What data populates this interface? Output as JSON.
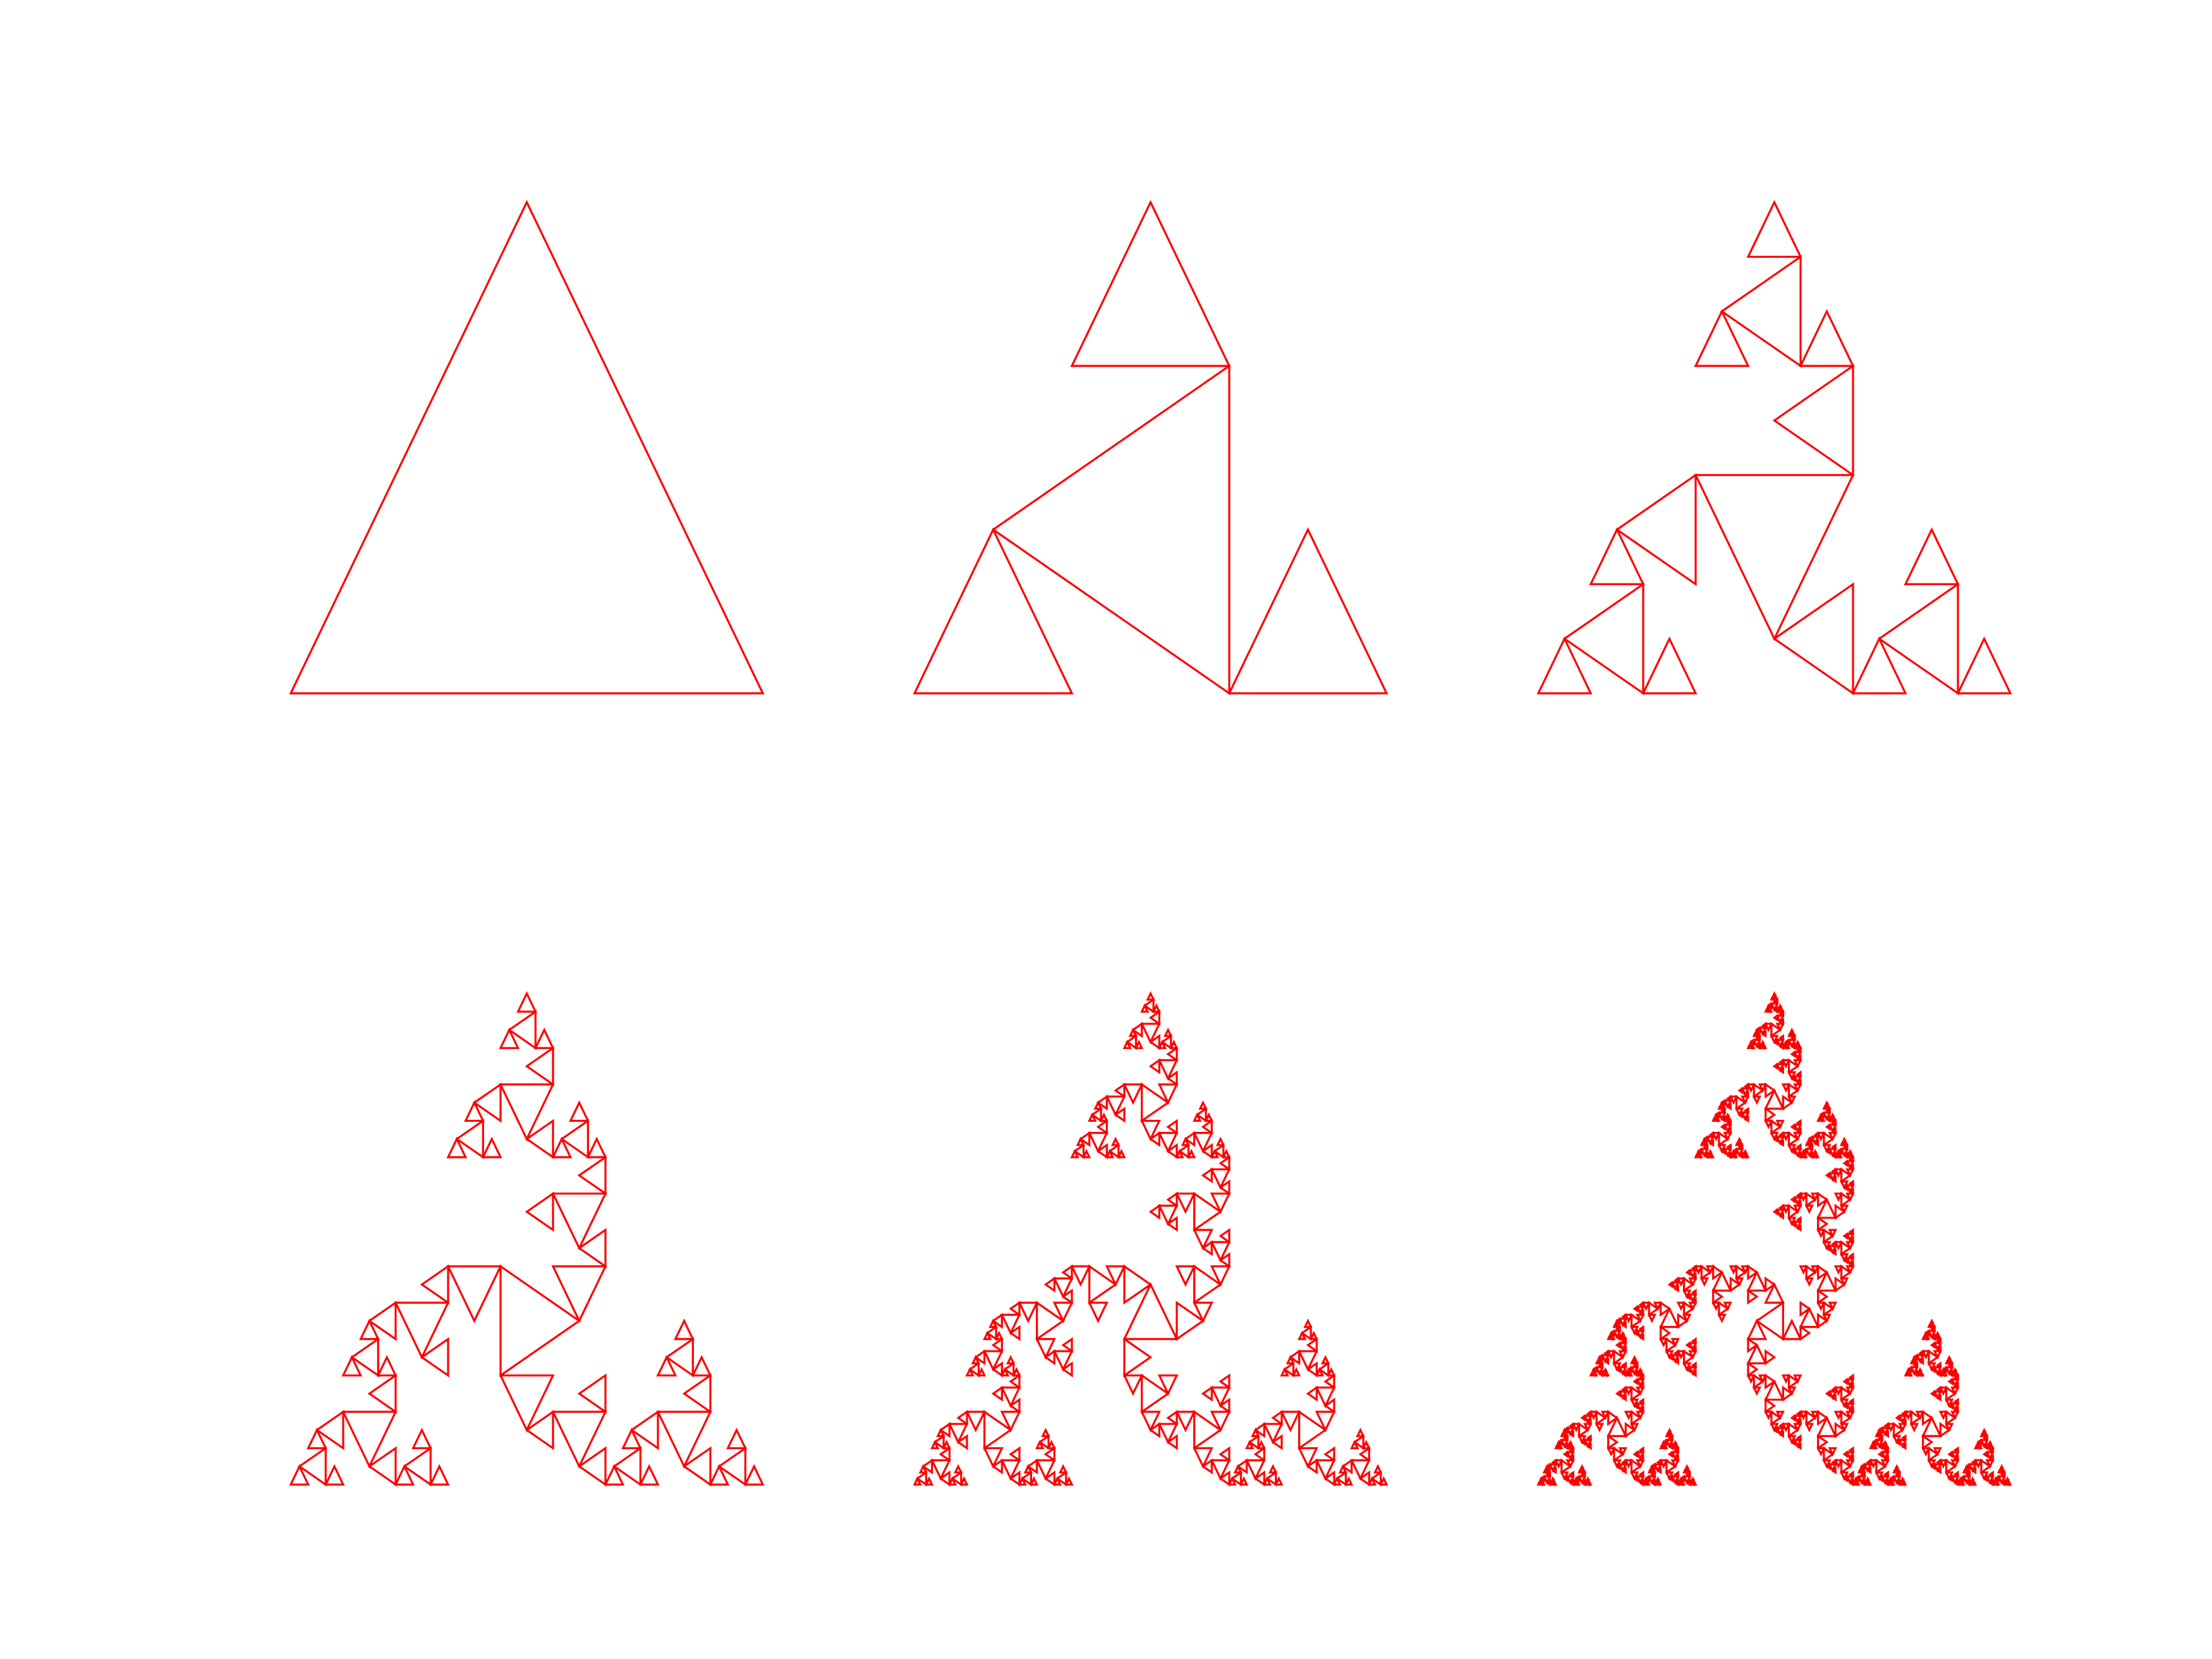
{
  "color": "#ff0000"
}
